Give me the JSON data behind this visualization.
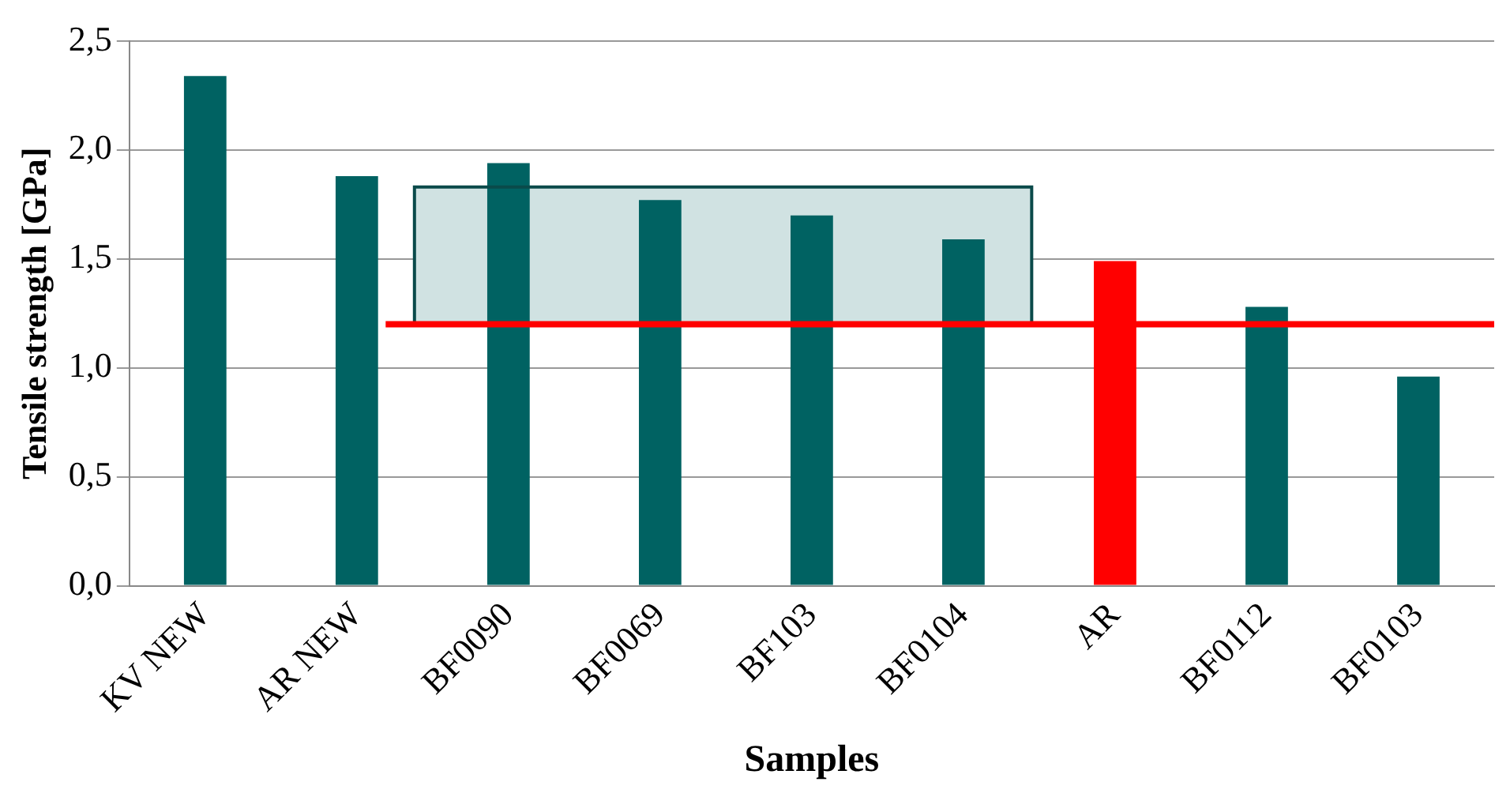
{
  "chart_data": {
    "type": "bar",
    "xlabel": "Samples",
    "ylabel": "Tensile strength [GPa]",
    "categories": [
      "KV NEW",
      "AR NEW",
      "BF0090",
      "BF0069",
      "BF103",
      "BF0104",
      "AR",
      "BF0112",
      "BF0103"
    ],
    "values": [
      2.34,
      1.88,
      1.94,
      1.77,
      1.7,
      1.59,
      1.49,
      1.28,
      0.96
    ],
    "colors": [
      "#006262",
      "#006262",
      "#006262",
      "#006262",
      "#006262",
      "#006262",
      "#ff0000",
      "#006262",
      "#006262"
    ],
    "ylim": [
      0,
      2.5
    ],
    "yticks": [
      {
        "value": 0,
        "label": "0,0"
      },
      {
        "value": 0.5,
        "label": "0,5"
      },
      {
        "value": 1,
        "label": "1,0"
      },
      {
        "value": 1.5,
        "label": "1,5"
      },
      {
        "value": 2,
        "label": "2,0"
      },
      {
        "value": 2.5,
        "label": "2,5"
      }
    ],
    "grid": "y",
    "legend": false,
    "ref_lines": [
      {
        "axis": "y",
        "value": 1.2,
        "color": "#ff0000"
      }
    ],
    "bands": [
      {
        "axis": "y",
        "from": 1.2,
        "to": 1.83,
        "color": "#d0e2e2"
      }
    ]
  }
}
